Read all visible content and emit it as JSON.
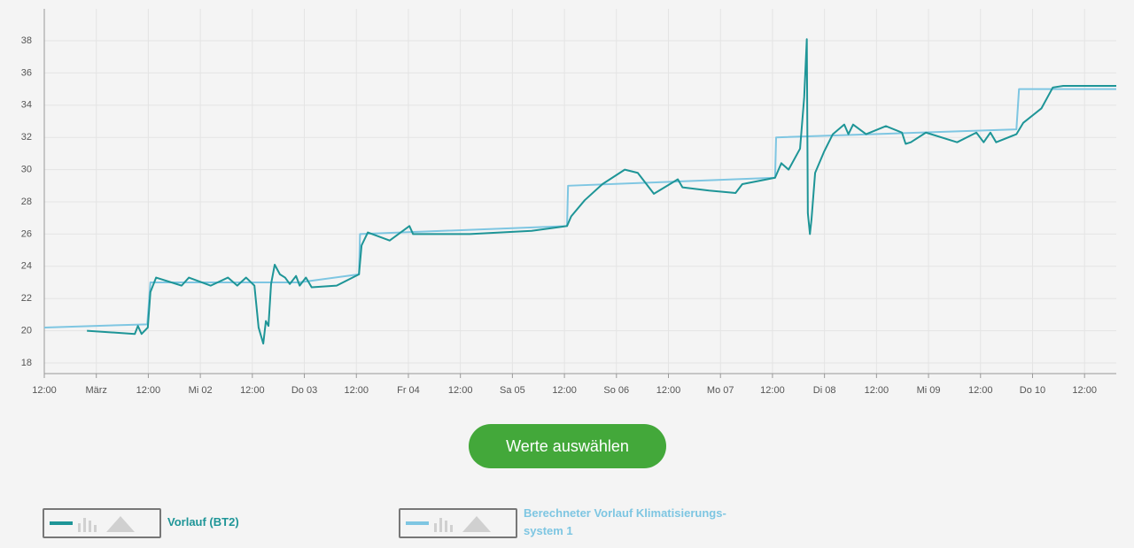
{
  "chart_data": {
    "type": "line",
    "xlim": [
      0,
      20.61
    ],
    "ylim": [
      17.34,
      39.98
    ],
    "yticks": [
      18,
      20,
      22,
      24,
      26,
      28,
      30,
      32,
      34,
      36,
      38
    ],
    "xticks": [
      {
        "value": 0,
        "label": "12:00"
      },
      {
        "value": 1,
        "label": "März"
      },
      {
        "value": 2,
        "label": "12:00"
      },
      {
        "value": 3,
        "label": "Mi 02"
      },
      {
        "value": 4,
        "label": "12:00"
      },
      {
        "value": 5,
        "label": "Do 03"
      },
      {
        "value": 6,
        "label": "12:00"
      },
      {
        "value": 7,
        "label": "Fr 04"
      },
      {
        "value": 8,
        "label": "12:00"
      },
      {
        "value": 9,
        "label": "Sa 05"
      },
      {
        "value": 10,
        "label": "12:00"
      },
      {
        "value": 11,
        "label": "So 06"
      },
      {
        "value": 12,
        "label": "12:00"
      },
      {
        "value": 13,
        "label": "Mo 07"
      },
      {
        "value": 14,
        "label": "12:00"
      },
      {
        "value": 15,
        "label": "Di 08"
      },
      {
        "value": 16,
        "label": "12:00"
      },
      {
        "value": 17,
        "label": "Mi 09"
      },
      {
        "value": 18,
        "label": "12:00"
      },
      {
        "value": 19,
        "label": "Do 10"
      },
      {
        "value": 20,
        "label": "12:00"
      }
    ],
    "grid": true,
    "series": [
      {
        "name": "Vorlauf (BT2)",
        "color": "#1e9597",
        "x": [
          0.82,
          1.74,
          1.8,
          1.87,
          1.99,
          2.04,
          2.15,
          2.64,
          2.78,
          3.2,
          3.53,
          3.71,
          3.88,
          4.04,
          4.12,
          4.21,
          4.26,
          4.31,
          4.36,
          4.43,
          4.53,
          4.63,
          4.72,
          4.84,
          4.91,
          5.03,
          5.14,
          5.62,
          6.05,
          6.1,
          6.22,
          6.64,
          7.02,
          7.09,
          8.18,
          9.37,
          10.05,
          10.13,
          10.39,
          10.73,
          11.16,
          11.41,
          11.72,
          12.18,
          12.27,
          12.78,
          13.29,
          13.42,
          14.05,
          14.17,
          14.31,
          14.53,
          14.61,
          14.66,
          14.68,
          14.72,
          14.75,
          14.82,
          14.99,
          15.16,
          15.38,
          15.46,
          15.55,
          15.8,
          16.18,
          16.49,
          16.56,
          16.66,
          16.95,
          17.55,
          17.92,
          18.06,
          18.19,
          18.3,
          18.69,
          18.82,
          19.17,
          19.39,
          19.59,
          20.61
        ],
        "values": [
          20.0,
          19.8,
          20.3,
          19.8,
          20.2,
          22.4,
          23.3,
          22.8,
          23.3,
          22.8,
          23.3,
          22.8,
          23.3,
          22.8,
          20.2,
          19.2,
          20.6,
          20.3,
          22.9,
          24.1,
          23.5,
          23.3,
          22.9,
          23.4,
          22.8,
          23.3,
          22.7,
          22.8,
          23.5,
          25.3,
          26.1,
          25.6,
          26.5,
          26.0,
          26.0,
          26.2,
          26.5,
          27.1,
          28.1,
          29.1,
          30.0,
          29.8,
          28.5,
          29.4,
          28.9,
          28.7,
          28.55,
          29.1,
          29.5,
          30.4,
          30.0,
          31.3,
          34.5,
          38.1,
          27.3,
          26.0,
          26.9,
          29.8,
          31.1,
          32.2,
          32.8,
          32.2,
          32.8,
          32.2,
          32.7,
          32.3,
          31.6,
          31.7,
          32.3,
          31.7,
          32.3,
          31.7,
          32.3,
          31.7,
          32.2,
          32.9,
          33.8,
          35.1,
          35.2,
          35.2
        ]
      },
      {
        "name": "Berechneter Vorlauf Klimatisierungs­system 1",
        "color": "#7ec6e2",
        "x": [
          0,
          1.98,
          2.04,
          4.9,
          6.05,
          6.07,
          10.05,
          10.07,
          14.05,
          14.07,
          18.69,
          18.74,
          20.61
        ],
        "values": [
          20.2,
          20.4,
          23.0,
          23.0,
          23.5,
          26.0,
          26.5,
          29.0,
          29.5,
          32.0,
          32.5,
          35.0,
          35.0
        ]
      }
    ]
  },
  "button": "Werte auswählen"
}
